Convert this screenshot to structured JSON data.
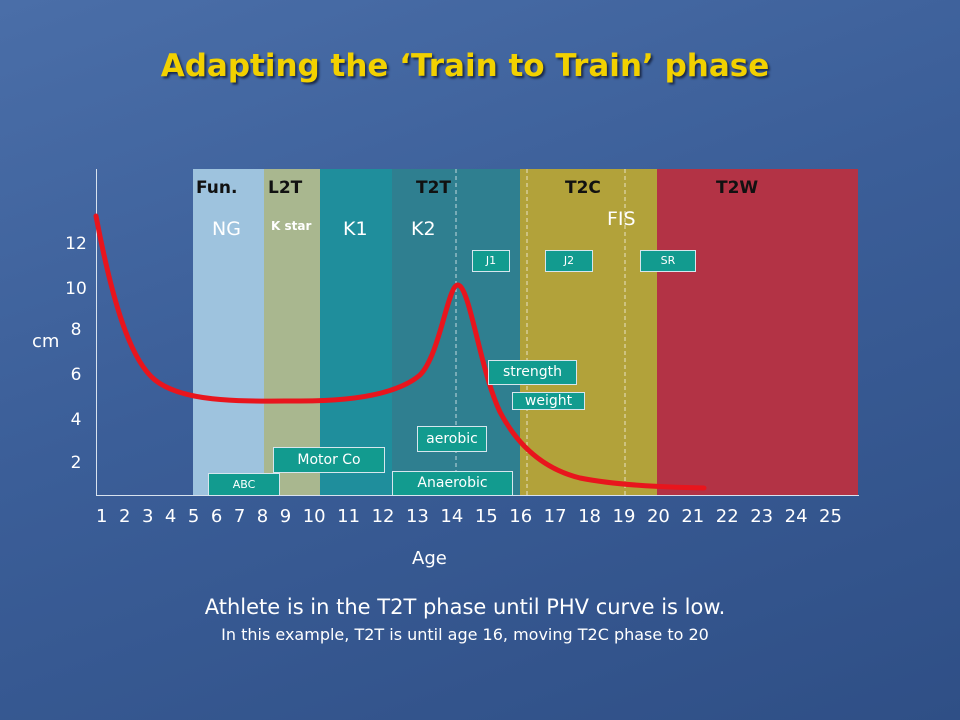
{
  "slide": {
    "title": "Adapting the ‘Train to Train’ phase",
    "caption_main": "Athlete is in the T2T phase until PHV curve is low.",
    "caption_sub": "In this example, T2T is until age 16, moving T2C phase to 20"
  },
  "diagram": {
    "y_axis_unit": "cm",
    "y_ticks": [
      "12",
      "10",
      "8",
      "6",
      "4",
      "2"
    ],
    "x_axis_title": "Age",
    "x_ticks": [
      "1",
      "2",
      "3",
      "4",
      "5",
      "6",
      "7",
      "8",
      "9",
      "10",
      "11",
      "12",
      "13",
      "14",
      "15",
      "16",
      "17",
      "18",
      "19",
      "20",
      "21",
      "22",
      "23",
      "24",
      "25"
    ],
    "phases": [
      "Fun.",
      "L2T",
      "T2T",
      "T2C",
      "T2W"
    ],
    "sub_phases": [
      "NG",
      "K star",
      "K1",
      "K2",
      "FIS"
    ],
    "markers": [
      "J1",
      "J2",
      "SR"
    ],
    "training_boxes": [
      "ABC",
      "Motor Co",
      "Anaerobic",
      "aerobic",
      "strength",
      "weight"
    ],
    "colors": {
      "fun": "#9ec3de",
      "l2t": "#a9b78f",
      "k1": "#1f8e9c",
      "t2t": "#2f7f90",
      "t2c": "#b2a23a",
      "t2w": "#b33345",
      "curve": "#e8151d",
      "title": "#f2d100",
      "box": "#129b8f"
    }
  }
}
